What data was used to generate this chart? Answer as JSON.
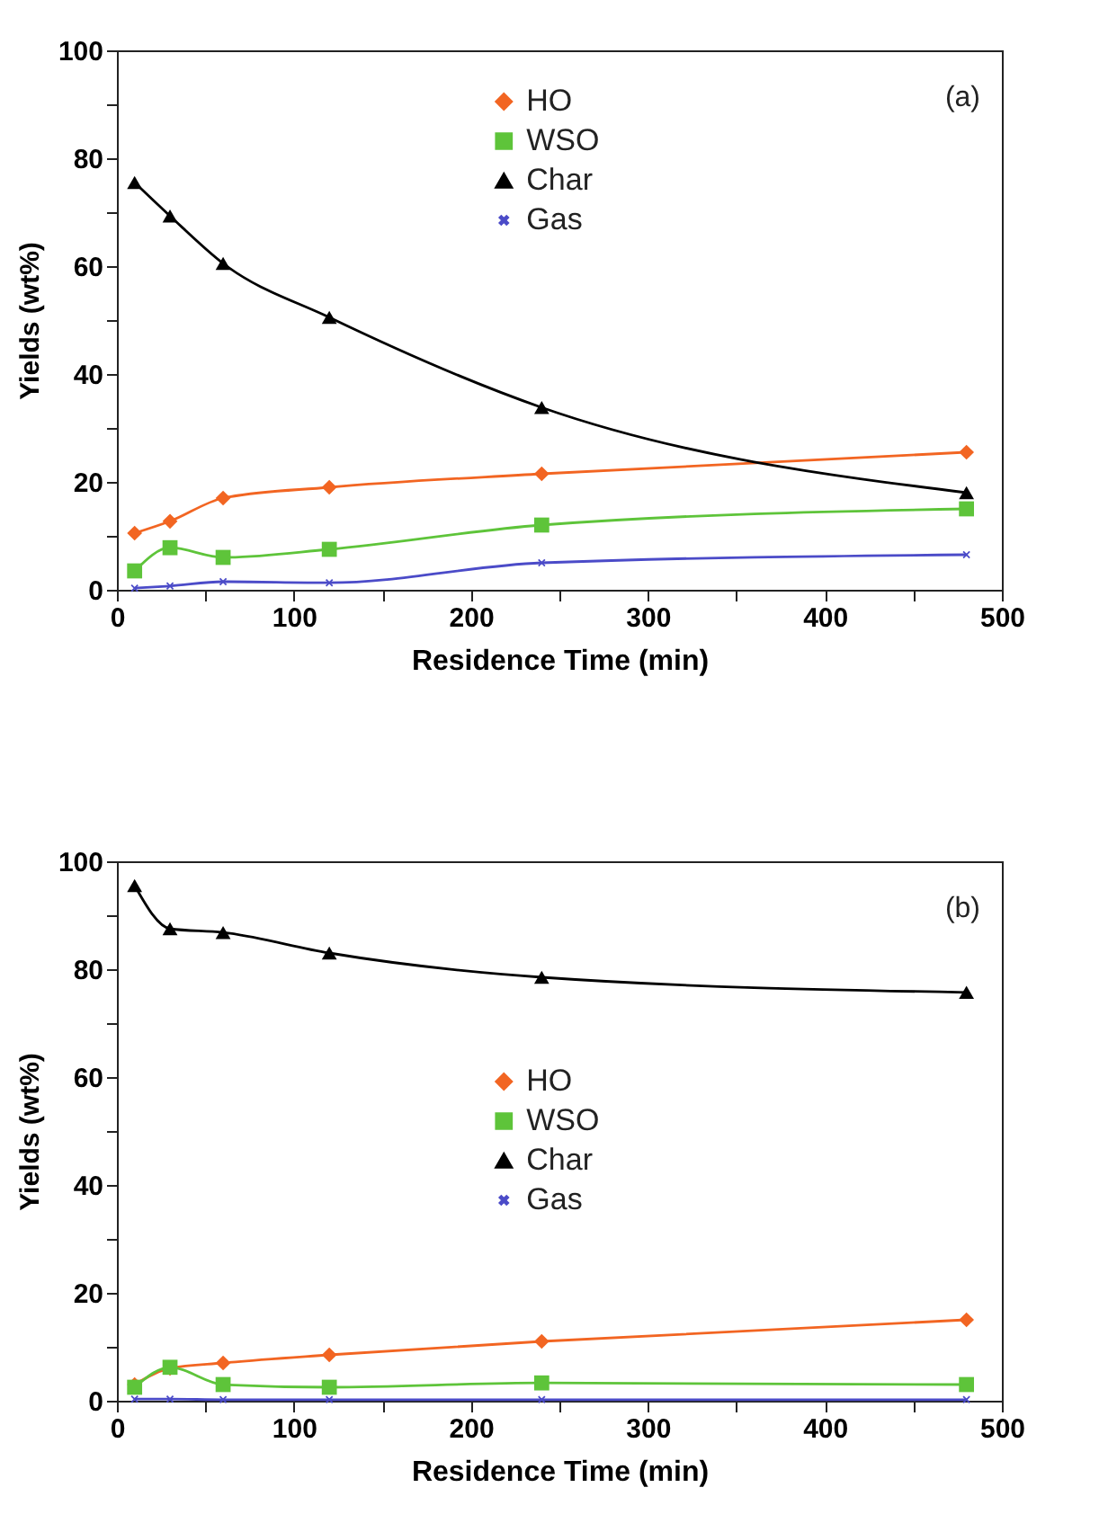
{
  "chart_data": [
    {
      "type": "line",
      "xlabel": "Residence Time (min)",
      "ylabel": "Yields (wt%)",
      "annotations": [
        "(a)"
      ],
      "legend": "top",
      "marker": "circle",
      "line_style": "solid",
      "x": [
        10,
        30,
        60,
        120,
        240,
        480
      ],
      "xlim": [
        0,
        500
      ],
      "ylim": [
        0,
        100
      ],
      "xticks": [
        0,
        {
          "value": 50,
          "label": null
        },
        100,
        {
          "value": 150,
          "label": null
        },
        200,
        {
          "value": 250,
          "label": null
        },
        300,
        {
          "value": 350,
          "label": null
        },
        400,
        {
          "value": 450,
          "label": null
        },
        500
      ],
      "yticks": [
        0,
        {
          "value": 10,
          "label": null
        },
        20,
        {
          "value": 30,
          "label": null
        },
        40,
        {
          "value": 50,
          "label": null
        },
        60,
        {
          "value": 70,
          "label": null
        },
        80,
        {
          "value": 90,
          "label": null
        },
        100
      ],
      "series": [
        {
          "name": "HO",
          "color": "#f26522",
          "marker": "diamond",
          "values": [
            10.5,
            12.7,
            17,
            19,
            21.5,
            25.5
          ]
        },
        {
          "name": "WSO",
          "color": "#5ec43a",
          "marker": "square",
          "values": [
            3.5,
            7.8,
            6,
            7.5,
            12,
            15
          ]
        },
        {
          "name": "Char",
          "color": "#000000",
          "marker": "triangle",
          "values": [
            75.5,
            69.3,
            60.5,
            50.5,
            33.8,
            18
          ]
        },
        {
          "name": "Gas",
          "color": "#4b4bc8",
          "marker": "cross",
          "values": [
            0.3,
            0.7,
            1.5,
            1.3,
            5,
            6.5
          ]
        }
      ]
    },
    {
      "type": "line",
      "xlabel": "Residence Time (min)",
      "ylabel": "Yields (wt%)",
      "annotations": [
        "(b)"
      ],
      "legend": "center",
      "marker": "circle",
      "line_style": "solid",
      "x": [
        10,
        30,
        60,
        120,
        240,
        480
      ],
      "xlim": [
        0,
        500
      ],
      "ylim": [
        0,
        100
      ],
      "xticks": [
        0,
        {
          "value": 50,
          "label": null
        },
        100,
        {
          "value": 150,
          "label": null
        },
        200,
        {
          "value": 250,
          "label": null
        },
        300,
        {
          "value": 350,
          "label": null
        },
        400,
        {
          "value": 450,
          "label": null
        },
        500
      ],
      "yticks": [
        0,
        {
          "value": 10,
          "label": null
        },
        20,
        {
          "value": 30,
          "label": null
        },
        40,
        {
          "value": 50,
          "label": null
        },
        60,
        {
          "value": 70,
          "label": null
        },
        80,
        {
          "value": 90,
          "label": null
        },
        100
      ],
      "series": [
        {
          "name": "HO",
          "color": "#f26522",
          "marker": "diamond",
          "values": [
            3,
            6,
            7,
            8.5,
            11,
            15
          ]
        },
        {
          "name": "WSO",
          "color": "#5ec43a",
          "marker": "square",
          "values": [
            2.5,
            6.2,
            3,
            2.5,
            3.3,
            3
          ]
        },
        {
          "name": "Char",
          "color": "#000000",
          "marker": "triangle",
          "values": [
            95.5,
            87.5,
            86.8,
            83,
            78.5,
            75.7
          ]
        },
        {
          "name": "Gas",
          "color": "#4b4bc8",
          "marker": "cross",
          "values": [
            0.3,
            0.3,
            0.2,
            0.2,
            0.2,
            0.2
          ]
        }
      ]
    }
  ]
}
